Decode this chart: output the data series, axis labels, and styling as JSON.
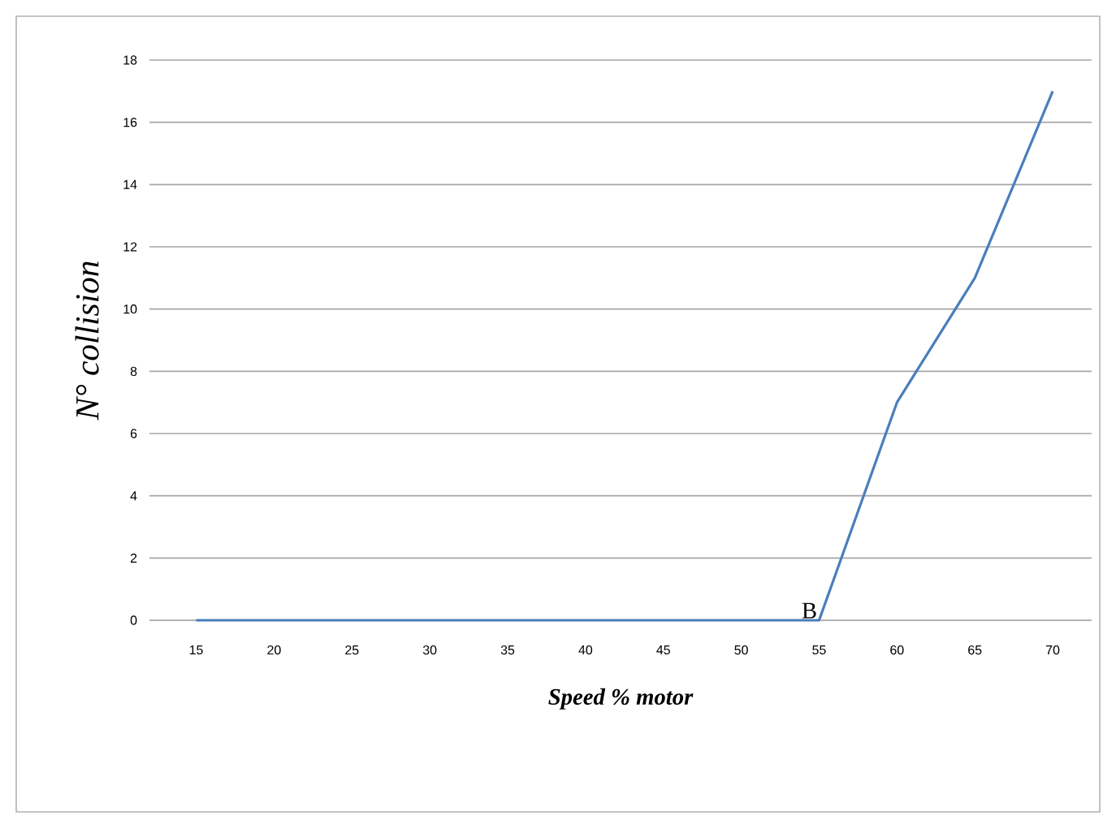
{
  "chart_data": {
    "type": "line",
    "xlabel": "Speed % motor",
    "ylabel": "N° collision",
    "categories": [
      "15",
      "20",
      "25",
      "30",
      "35",
      "40",
      "45",
      "50",
      "55",
      "60",
      "65",
      "70"
    ],
    "series": [
      {
        "color": "#4a7ebb",
        "values": [
          0,
          0,
          0,
          0,
          0,
          0,
          0,
          0,
          0,
          7,
          11,
          17
        ]
      }
    ],
    "ylim": [
      0,
      18
    ],
    "yticks": [
      0,
      2,
      4,
      6,
      8,
      10,
      12,
      14,
      16,
      18
    ],
    "grid": "y",
    "annotations": [
      {
        "text": "B",
        "x": "55",
        "y": 0
      }
    ]
  }
}
